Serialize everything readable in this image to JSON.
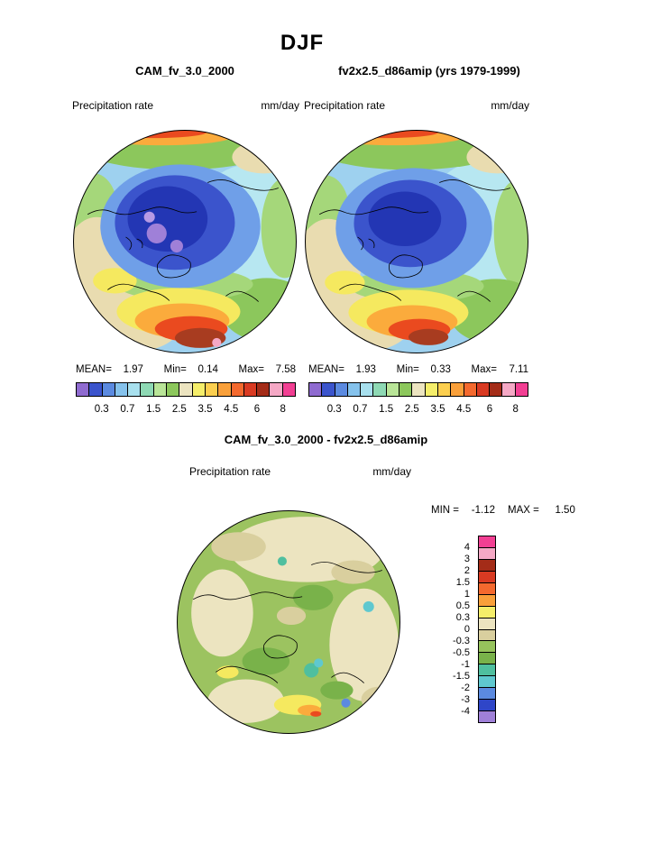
{
  "page": {
    "title": "DJF"
  },
  "panels": {
    "left": {
      "title": "CAM_fv_3.0_2000",
      "field_label": "Precipitation rate",
      "units": "mm/day",
      "stats": {
        "mean_label": "MEAN=",
        "mean": "1.97",
        "min_label": "Min=",
        "min": "0.14",
        "max_label": "Max=",
        "max": "7.58"
      }
    },
    "right": {
      "title": "fv2x2.5_d86amip (yrs 1979-1999)",
      "field_label": "Precipitation rate",
      "units": "mm/day",
      "stats": {
        "mean_label": "MEAN=",
        "mean": "1.93",
        "min_label": "Min=",
        "min": "0.33",
        "max_label": "Max=",
        "max": "7.11"
      }
    },
    "colorbar": {
      "colors": [
        "#8f6bd0",
        "#3b54cc",
        "#5b8ae0",
        "#85c2ec",
        "#a8e0ee",
        "#8ed9b4",
        "#b9e598",
        "#8cc75c",
        "#ece4c0",
        "#f5ee6a",
        "#fccf4f",
        "#f9a03a",
        "#f4692e",
        "#d93a22",
        "#a42c18",
        "#f5a8c5",
        "#f23f93"
      ],
      "tick_labels": [
        "0.3",
        "0.7",
        "1.5",
        "2.5",
        "3.5",
        "4.5",
        "6",
        "8"
      ]
    }
  },
  "diff": {
    "title": "CAM_fv_3.0_2000 - fv2x2.5_d86amip",
    "field_label": "Precipitation rate",
    "units": "mm/day",
    "min_label": "MIN =",
    "min_value": "-1.12",
    "max_label": "MAX =",
    "max_value": "1.50",
    "colorbar": {
      "colors": [
        "#f23f93",
        "#f5a8c5",
        "#a42c18",
        "#d93a22",
        "#f4692e",
        "#f9a03a",
        "#f5ee6a",
        "#ece4c0",
        "#d9cf9e",
        "#96c35c",
        "#79b24a",
        "#4fbf9f",
        "#5fc8cf",
        "#5b8ae0",
        "#2f46c8",
        "#9f80d8"
      ],
      "labels": [
        "4",
        "3",
        "2",
        "1.5",
        "1",
        "0.5",
        "0.3",
        "0",
        "-0.3",
        "-0.5",
        "-1",
        "-1.5",
        "-2",
        "-3",
        "-4"
      ]
    }
  },
  "chart_data": [
    {
      "type": "heatmap",
      "subtype": "filled-contour polar stereographic map (Northern Hemisphere)",
      "panel": "top-left",
      "season": "DJF",
      "title": "CAM_fv_3.0_2000",
      "variable": "Precipitation rate",
      "units": "mm/day",
      "stats": {
        "mean": 1.97,
        "min": 0.14,
        "max": 7.58
      },
      "contour_levels": [
        0.2,
        0.3,
        0.5,
        0.7,
        1,
        1.5,
        2,
        2.5,
        3,
        3.5,
        4,
        4.5,
        5,
        6,
        7,
        8
      ],
      "labeled_levels": [
        0.3,
        0.7,
        1.5,
        2.5,
        3.5,
        4.5,
        6,
        8
      ],
      "legend_position": "below"
    },
    {
      "type": "heatmap",
      "subtype": "filled-contour polar stereographic map (Northern Hemisphere)",
      "panel": "top-right",
      "season": "DJF",
      "title": "fv2x2.5_d86amip (yrs 1979-1999)",
      "variable": "Precipitation rate",
      "units": "mm/day",
      "stats": {
        "mean": 1.93,
        "min": 0.33,
        "max": 7.11
      },
      "contour_levels": [
        0.2,
        0.3,
        0.5,
        0.7,
        1,
        1.5,
        2,
        2.5,
        3,
        3.5,
        4,
        4.5,
        5,
        6,
        7,
        8
      ],
      "labeled_levels": [
        0.3,
        0.7,
        1.5,
        2.5,
        3.5,
        4.5,
        6,
        8
      ],
      "legend_position": "below"
    },
    {
      "type": "heatmap",
      "subtype": "filled-contour polar stereographic difference map (Northern Hemisphere)",
      "panel": "bottom",
      "title": "CAM_fv_3.0_2000 - fv2x2.5_d86amip",
      "variable": "Precipitation rate",
      "units": "mm/day",
      "stats": {
        "min": -1.12,
        "max": 1.5
      },
      "contour_levels": [
        -4,
        -3,
        -2,
        -1.5,
        -1,
        -0.5,
        -0.3,
        0,
        0.3,
        0.5,
        1,
        1.5,
        2,
        3,
        4
      ],
      "legend_position": "right"
    }
  ]
}
